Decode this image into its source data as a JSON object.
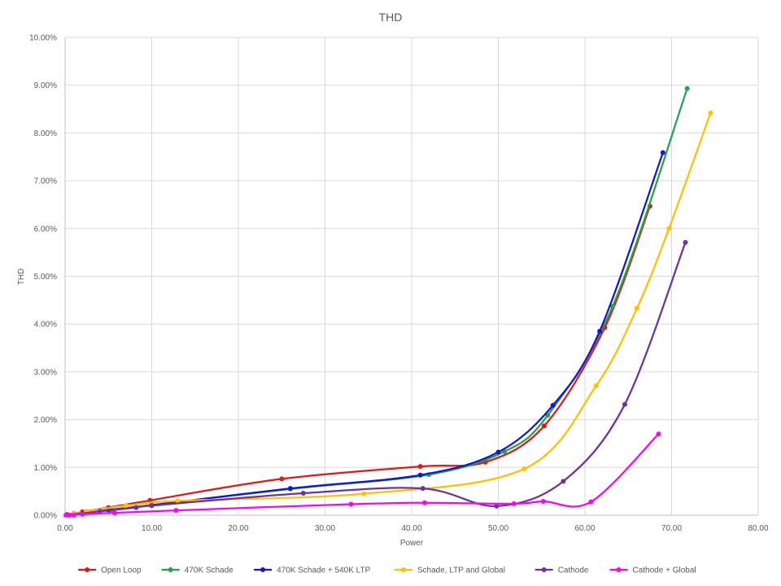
{
  "chart_data": {
    "type": "scatter",
    "title": "THD",
    "xlabel": "Power",
    "ylabel": "THD",
    "xlim": [
      0,
      80
    ],
    "ylim": [
      0,
      0.1
    ],
    "x_ticks": [
      "0.00",
      "10.00",
      "20.00",
      "30.00",
      "40.00",
      "50.00",
      "60.00",
      "70.00",
      "80.00"
    ],
    "y_ticks": [
      "0.00%",
      "1.00%",
      "2.00%",
      "3.00%",
      "4.00%",
      "5.00%",
      "6.00%",
      "7.00%",
      "8.00%",
      "9.00%",
      "10.00%"
    ],
    "grid": true,
    "legend_position": "bottom",
    "series": [
      {
        "name": "Open Loop",
        "color": "#e81515",
        "points": [
          [
            0.2,
            0.0001
          ],
          [
            1.0,
            0.0004
          ],
          [
            2.0,
            0.0007
          ],
          [
            5.0,
            0.0016
          ],
          [
            9.8,
            0.0031
          ],
          [
            25.0,
            0.0076
          ],
          [
            41.0,
            0.0102
          ],
          [
            48.5,
            0.0111
          ],
          [
            55.3,
            0.0187
          ],
          [
            62.3,
            0.0393
          ],
          [
            67.5,
            0.0647
          ]
        ]
      },
      {
        "name": "470K Schade",
        "color": "#1fa64a",
        "points": [
          [
            0.2,
            0.0001
          ],
          [
            1.0,
            0.0003
          ],
          [
            2.1,
            0.0005
          ],
          [
            5.3,
            0.0011
          ],
          [
            10.0,
            0.0021
          ],
          [
            26.0,
            0.0055
          ],
          [
            42.0,
            0.0085
          ],
          [
            50.7,
            0.0133
          ],
          [
            55.7,
            0.0209
          ],
          [
            63.2,
            0.0437
          ],
          [
            71.8,
            0.0893
          ]
        ]
      },
      {
        "name": "470K Schade + 540K LTP",
        "color": "#1515d6",
        "points": [
          [
            0.2,
            0.0001
          ],
          [
            1.0,
            0.0003
          ],
          [
            2.0,
            0.0005
          ],
          [
            5.0,
            0.0011
          ],
          [
            10.0,
            0.0021
          ],
          [
            26.0,
            0.0056
          ],
          [
            41.0,
            0.0084
          ],
          [
            50.0,
            0.0132
          ],
          [
            56.3,
            0.023
          ],
          [
            61.7,
            0.0385
          ],
          [
            69.0,
            0.0759
          ]
        ]
      },
      {
        "name": "Schade, LTP and Global",
        "color": "#ffc000",
        "points": [
          [
            0.2,
            0.0002
          ],
          [
            1.0,
            0.0004
          ],
          [
            2.5,
            0.0008
          ],
          [
            7.0,
            0.002
          ],
          [
            13.0,
            0.003
          ],
          [
            34.5,
            0.0045
          ],
          [
            53.0,
            0.0097
          ],
          [
            61.3,
            0.0271
          ],
          [
            66.0,
            0.0433
          ],
          [
            69.7,
            0.06
          ],
          [
            74.5,
            0.0842
          ]
        ]
      },
      {
        "name": "Cathode",
        "color": "#7030a0",
        "points": [
          [
            0.2,
            0.0001
          ],
          [
            2.0,
            0.0004
          ],
          [
            4.0,
            0.0008
          ],
          [
            8.2,
            0.0016
          ],
          [
            10.0,
            0.002
          ],
          [
            27.5,
            0.0046
          ],
          [
            41.3,
            0.0056
          ],
          [
            49.8,
            0.0019
          ],
          [
            57.5,
            0.0071
          ],
          [
            64.6,
            0.0232
          ],
          [
            71.6,
            0.0571
          ]
        ]
      },
      {
        "name": "Cathode + Global",
        "color": "#ff00ff",
        "points": [
          [
            0.1,
            0.0
          ],
          [
            0.5,
            0.0
          ],
          [
            1.0,
            0.0
          ],
          [
            2.0,
            0.0002
          ],
          [
            5.7,
            0.0005
          ],
          [
            12.8,
            0.001
          ],
          [
            33.0,
            0.0023
          ],
          [
            41.5,
            0.0026
          ],
          [
            51.8,
            0.0024
          ],
          [
            55.2,
            0.0029
          ],
          [
            60.7,
            0.0028
          ],
          [
            68.5,
            0.017
          ]
        ]
      }
    ]
  }
}
